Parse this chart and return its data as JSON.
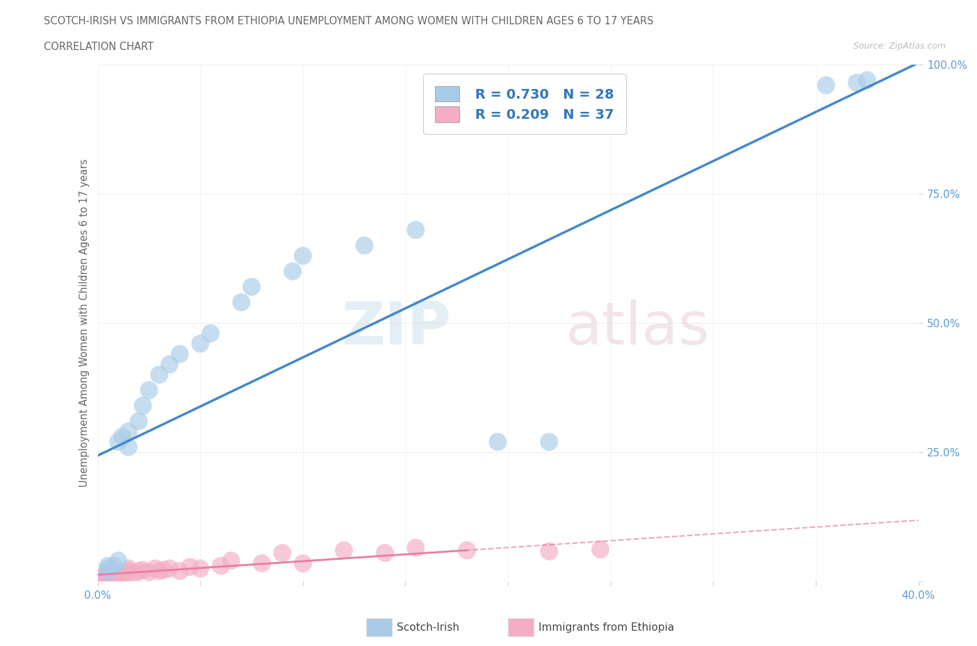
{
  "title_line1": "SCOTCH-IRISH VS IMMIGRANTS FROM ETHIOPIA UNEMPLOYMENT AMONG WOMEN WITH CHILDREN AGES 6 TO 17 YEARS",
  "title_line2": "CORRELATION CHART",
  "source_text": "Source: ZipAtlas.com",
  "ylabel": "Unemployment Among Women with Children Ages 6 to 17 years",
  "xlim": [
    0.0,
    0.4
  ],
  "ylim": [
    0.0,
    1.0
  ],
  "xticks": [
    0.0,
    0.05,
    0.1,
    0.15,
    0.2,
    0.25,
    0.3,
    0.35,
    0.4
  ],
  "yticks_right": [
    0.0,
    0.25,
    0.5,
    0.75,
    1.0
  ],
  "yticklabels_right": [
    "",
    "25.0%",
    "50.0%",
    "75.0%",
    "100.0%"
  ],
  "scotch_irish_color": "#a8cce8",
  "ethiopia_color": "#f4adc4",
  "scotch_irish_line_color": "#4488cc",
  "ethiopia_line_color": "#e87fa0",
  "R_scotch": 0.73,
  "N_scotch": 28,
  "R_ethiopia": 0.209,
  "N_ethiopia": 37,
  "scotch_irish_x": [
    0.005,
    0.005,
    0.005,
    0.008,
    0.01,
    0.01,
    0.012,
    0.015,
    0.015,
    0.02,
    0.022,
    0.025,
    0.03,
    0.035,
    0.04,
    0.05,
    0.055,
    0.07,
    0.075,
    0.095,
    0.1,
    0.13,
    0.155,
    0.195,
    0.22,
    0.355,
    0.37,
    0.375
  ],
  "scotch_irish_y": [
    0.02,
    0.025,
    0.03,
    0.03,
    0.04,
    0.27,
    0.28,
    0.26,
    0.29,
    0.31,
    0.34,
    0.37,
    0.4,
    0.42,
    0.44,
    0.46,
    0.48,
    0.54,
    0.57,
    0.6,
    0.63,
    0.65,
    0.68,
    0.27,
    0.27,
    0.96,
    0.965,
    0.97
  ],
  "ethiopia_x": [
    0.0,
    0.001,
    0.002,
    0.003,
    0.004,
    0.005,
    0.005,
    0.007,
    0.008,
    0.01,
    0.01,
    0.012,
    0.015,
    0.015,
    0.015,
    0.018,
    0.02,
    0.022,
    0.025,
    0.028,
    0.03,
    0.032,
    0.035,
    0.04,
    0.045,
    0.05,
    0.06,
    0.065,
    0.08,
    0.09,
    0.1,
    0.12,
    0.14,
    0.155,
    0.18,
    0.22,
    0.245
  ],
  "ethiopia_y": [
    0.005,
    0.005,
    0.008,
    0.01,
    0.008,
    0.012,
    0.015,
    0.008,
    0.01,
    0.01,
    0.015,
    0.012,
    0.018,
    0.02,
    0.025,
    0.015,
    0.02,
    0.022,
    0.018,
    0.025,
    0.02,
    0.022,
    0.025,
    0.02,
    0.028,
    0.025,
    0.03,
    0.04,
    0.035,
    0.055,
    0.035,
    0.06,
    0.055,
    0.065,
    0.06,
    0.058,
    0.062
  ],
  "background_color": "#ffffff",
  "grid_color": "#e8e8e8",
  "watermark_zip_color": "#d5e8f0",
  "watermark_atlas_color": "#e8d5e0"
}
